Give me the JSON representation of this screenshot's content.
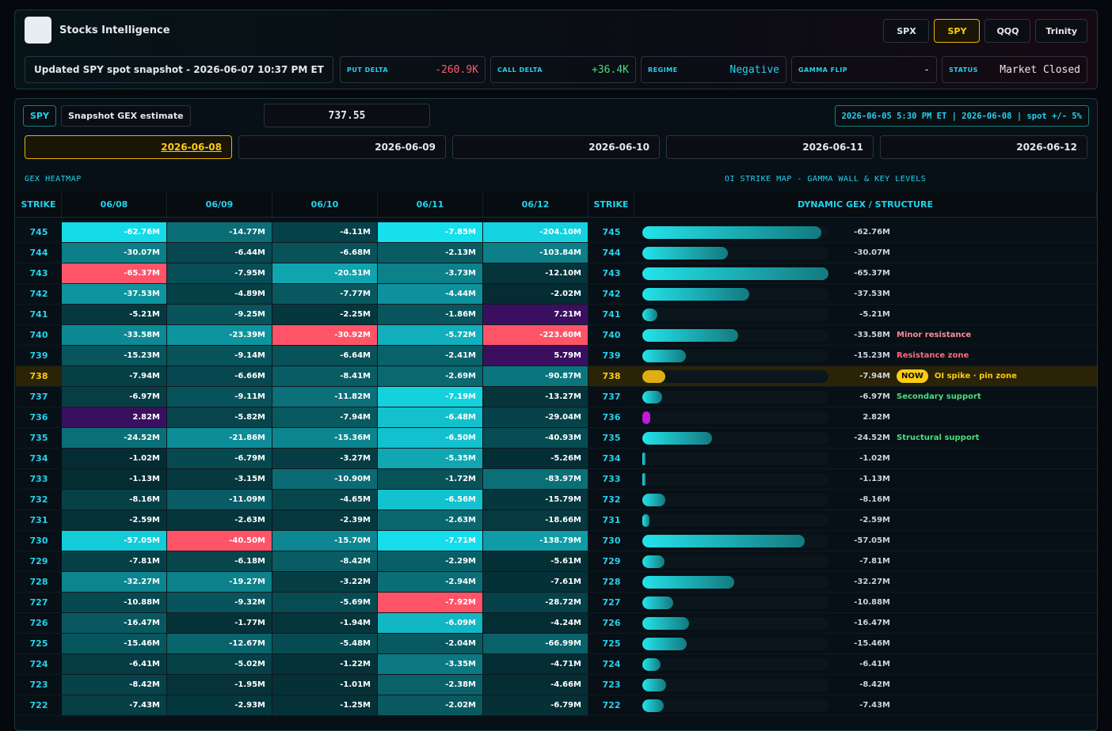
{
  "header": {
    "title": "Stocks Intelligence",
    "tabs": [
      "SPX",
      "SPY",
      "QQQ",
      "Trinity"
    ],
    "active_tab": "SPY",
    "snapshot": "Updated SPY spot snapshot - 2026-06-07 10:37 PM ET",
    "stats": [
      {
        "label": "PUT DELTA",
        "value": "-260.9K",
        "color": "#ff5a6e"
      },
      {
        "label": "CALL DELTA",
        "value": "+36.4K",
        "color": "#4ade80"
      },
      {
        "label": "REGIME",
        "value": "Negative",
        "color": "#22d3ee"
      },
      {
        "label": "GAMMA FLIP",
        "value": "-",
        "color": "#e5e7eb"
      },
      {
        "label": "STATUS",
        "value": "Market Closed",
        "color": "#e5e7eb"
      }
    ]
  },
  "panel": {
    "symbol": "SPY",
    "mode": "Snapshot GEX estimate",
    "spot": "737.55",
    "range": "2026-06-05 5:30 PM ET | 2026-06-08 | spot +/- 5%",
    "dates": [
      "2026-06-08",
      "2026-06-09",
      "2026-06-10",
      "2026-06-11",
      "2026-06-12"
    ],
    "active_date": "2026-06-08",
    "heatmap_title": "GEX HEATMAP",
    "map_title": "OI STRIKE MAP - GAMMA WALL & KEY LEVELS"
  },
  "table": {
    "columns": [
      "STRIKE",
      "06/08",
      "06/09",
      "06/10",
      "06/11",
      "06/12",
      "STRIKE",
      "DYNAMIC GEX / STRUCTURE"
    ],
    "rows": [
      {
        "strike": "745",
        "cells": [
          "-62.76M",
          "-14.77M",
          "-4.11M",
          "-7.85M",
          "-204.10M"
        ]
      },
      {
        "strike": "744",
        "cells": [
          "-30.07M",
          "-6.44M",
          "-6.68M",
          "-2.13M",
          "-103.84M"
        ]
      },
      {
        "strike": "743",
        "cells": [
          "-65.37M",
          "-7.95M",
          "-20.51M",
          "-3.73M",
          "-12.10M"
        ]
      },
      {
        "strike": "742",
        "cells": [
          "-37.53M",
          "-4.89M",
          "-7.77M",
          "-4.44M",
          "-2.02M"
        ]
      },
      {
        "strike": "741",
        "cells": [
          "-5.21M",
          "-9.25M",
          "-2.25M",
          "-1.86M",
          "7.21M"
        ]
      },
      {
        "strike": "740",
        "cells": [
          "-33.58M",
          "-23.39M",
          "-30.92M",
          "-5.72M",
          "-223.60M"
        ],
        "note": "Minor resistance",
        "note_color": "#ff8a98"
      },
      {
        "strike": "739",
        "cells": [
          "-15.23M",
          "-9.14M",
          "-6.64M",
          "-2.41M",
          "5.79M"
        ],
        "note": "Resistance zone",
        "note_color": "#ff6b7d"
      },
      {
        "strike": "738",
        "cells": [
          "-7.94M",
          "-6.66M",
          "-8.41M",
          "-2.69M",
          "-90.87M"
        ],
        "badge": "NOW",
        "note": "OI spike · pin zone",
        "note_color": "#facc15"
      },
      {
        "strike": "737",
        "cells": [
          "-6.97M",
          "-9.11M",
          "-11.82M",
          "-7.19M",
          "-13.27M"
        ],
        "note": "Secondary support",
        "note_color": "#4ade80"
      },
      {
        "strike": "736",
        "cells": [
          "2.82M",
          "-5.82M",
          "-7.94M",
          "-6.48M",
          "-29.04M"
        ]
      },
      {
        "strike": "735",
        "cells": [
          "-24.52M",
          "-21.86M",
          "-15.36M",
          "-6.50M",
          "-40.93M"
        ],
        "note": "Structural support",
        "note_color": "#4ade80"
      },
      {
        "strike": "734",
        "cells": [
          "-1.02M",
          "-6.79M",
          "-3.27M",
          "-5.35M",
          "-5.26M"
        ]
      },
      {
        "strike": "733",
        "cells": [
          "-1.13M",
          "-3.15M",
          "-10.90M",
          "-1.72M",
          "-83.97M"
        ]
      },
      {
        "strike": "732",
        "cells": [
          "-8.16M",
          "-11.09M",
          "-4.65M",
          "-6.56M",
          "-15.79M"
        ]
      },
      {
        "strike": "731",
        "cells": [
          "-2.59M",
          "-2.63M",
          "-2.39M",
          "-2.63M",
          "-18.66M"
        ]
      },
      {
        "strike": "730",
        "cells": [
          "-57.05M",
          "-40.50M",
          "-15.70M",
          "-7.71M",
          "-138.79M"
        ]
      },
      {
        "strike": "729",
        "cells": [
          "-7.81M",
          "-6.18M",
          "-8.42M",
          "-2.29M",
          "-5.61M"
        ]
      },
      {
        "strike": "728",
        "cells": [
          "-32.27M",
          "-19.27M",
          "-3.22M",
          "-2.94M",
          "-7.61M"
        ]
      },
      {
        "strike": "727",
        "cells": [
          "-10.88M",
          "-9.32M",
          "-5.69M",
          "-7.92M",
          "-28.72M"
        ]
      },
      {
        "strike": "726",
        "cells": [
          "-16.47M",
          "-1.77M",
          "-1.94M",
          "-6.09M",
          "-4.24M"
        ]
      },
      {
        "strike": "725",
        "cells": [
          "-15.46M",
          "-12.67M",
          "-5.48M",
          "-2.04M",
          "-66.99M"
        ]
      },
      {
        "strike": "724",
        "cells": [
          "-6.41M",
          "-5.02M",
          "-1.22M",
          "-3.35M",
          "-4.71M"
        ]
      },
      {
        "strike": "723",
        "cells": [
          "-8.42M",
          "-1.95M",
          "-1.01M",
          "-2.38M",
          "-4.66M"
        ]
      },
      {
        "strike": "722",
        "cells": [
          "-7.43M",
          "-2.93M",
          "-1.25M",
          "-2.02M",
          "-6.79M"
        ]
      }
    ]
  }
}
